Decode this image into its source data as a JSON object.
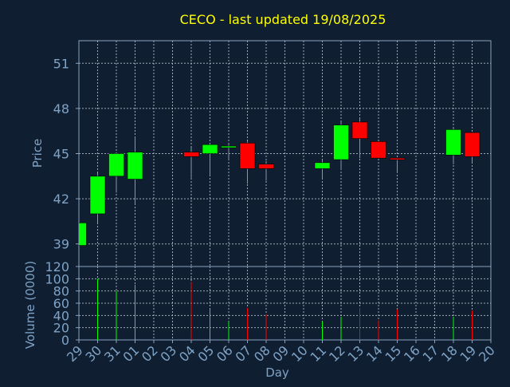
{
  "title": "CECO - last updated 19/08/2025",
  "colors": {
    "background": "#0f1e30",
    "title": "#ffff00",
    "axis_text": "#7fa3c6",
    "frame": "#8aa4c0",
    "grid": "#b8c4d0",
    "up": "#00ff00",
    "down": "#ff0000",
    "wick": "#8a96a6"
  },
  "chart_data": [
    {
      "type": "candlestick",
      "ylabel": "Price",
      "ylim": [
        37.5,
        52.5
      ],
      "yticks": [
        39,
        42,
        45,
        48,
        51
      ],
      "grid": true,
      "x": [
        "29",
        "30",
        "31",
        "01",
        "02",
        "03",
        "04",
        "05",
        "06",
        "07",
        "08",
        "09",
        "10",
        "11",
        "12",
        "13",
        "14",
        "15",
        "16",
        "17",
        "18",
        "19",
        "20"
      ],
      "candles": [
        {
          "x": "29",
          "open": 38.9,
          "close": 40.4,
          "low": 38.9,
          "high": 40.4
        },
        {
          "x": "30",
          "open": 41.0,
          "close": 43.5,
          "low": 40.4,
          "high": 43.7
        },
        {
          "x": "31",
          "open": 43.5,
          "close": 45.0,
          "low": 42.4,
          "high": 45.0
        },
        {
          "x": "01",
          "open": 43.3,
          "close": 45.1,
          "low": 41.6,
          "high": 46.1
        },
        {
          "x": "04",
          "open": 45.1,
          "close": 44.8,
          "low": 43.4,
          "high": 45.4
        },
        {
          "x": "05",
          "open": 45.0,
          "close": 45.6,
          "low": 43.6,
          "high": 45.6
        },
        {
          "x": "06",
          "open": 45.4,
          "close": 45.5,
          "low": 44.6,
          "high": 45.6
        },
        {
          "x": "07",
          "open": 45.7,
          "close": 44.0,
          "low": 43.0,
          "high": 45.8
        },
        {
          "x": "08",
          "open": 44.3,
          "close": 44.0,
          "low": 43.2,
          "high": 44.5
        },
        {
          "x": "11",
          "open": 44.0,
          "close": 44.4,
          "low": 43.3,
          "high": 44.6
        },
        {
          "x": "12",
          "open": 44.6,
          "close": 46.9,
          "low": 43.9,
          "high": 47.1
        },
        {
          "x": "13",
          "open": 47.1,
          "close": 46.0,
          "low": 44.7,
          "high": 47.3
        },
        {
          "x": "14",
          "open": 45.8,
          "close": 44.7,
          "low": 44.7,
          "high": 45.8
        },
        {
          "x": "15",
          "open": 44.7,
          "close": 44.6,
          "low": 43.7,
          "high": 44.7
        },
        {
          "x": "18",
          "open": 44.9,
          "close": 46.6,
          "low": 44.3,
          "high": 46.7
        },
        {
          "x": "19",
          "open": 46.4,
          "close": 44.8,
          "low": 44.4,
          "high": 46.4
        }
      ]
    },
    {
      "type": "bar",
      "xlabel": "Day",
      "ylabel": "Volume (0000)",
      "ylim": [
        0,
        120
      ],
      "yticks": [
        0,
        20,
        40,
        60,
        80,
        100,
        120
      ],
      "grid": true,
      "categories": [
        "29",
        "30",
        "31",
        "01",
        "02",
        "03",
        "04",
        "05",
        "06",
        "07",
        "08",
        "09",
        "10",
        "11",
        "12",
        "13",
        "14",
        "15",
        "16",
        "17",
        "18",
        "19",
        "20"
      ],
      "bars": [
        {
          "x": "30",
          "value": 100,
          "direction": "up"
        },
        {
          "x": "31",
          "value": 80,
          "direction": "up"
        },
        {
          "x": "01",
          "value": 90,
          "direction": "up"
        },
        {
          "x": "04",
          "value": 95,
          "direction": "down"
        },
        {
          "x": "05",
          "value": 50,
          "direction": "up"
        },
        {
          "x": "06",
          "value": 30,
          "direction": "up"
        },
        {
          "x": "07",
          "value": 52,
          "direction": "down"
        },
        {
          "x": "08",
          "value": 42,
          "direction": "down"
        },
        {
          "x": "11",
          "value": 30,
          "direction": "up"
        },
        {
          "x": "12",
          "value": 38,
          "direction": "up"
        },
        {
          "x": "13",
          "value": 52,
          "direction": "down"
        },
        {
          "x": "14",
          "value": 32,
          "direction": "down"
        },
        {
          "x": "15",
          "value": 50,
          "direction": "down"
        },
        {
          "x": "18",
          "value": 38,
          "direction": "up"
        },
        {
          "x": "19",
          "value": 48,
          "direction": "down"
        }
      ]
    }
  ]
}
